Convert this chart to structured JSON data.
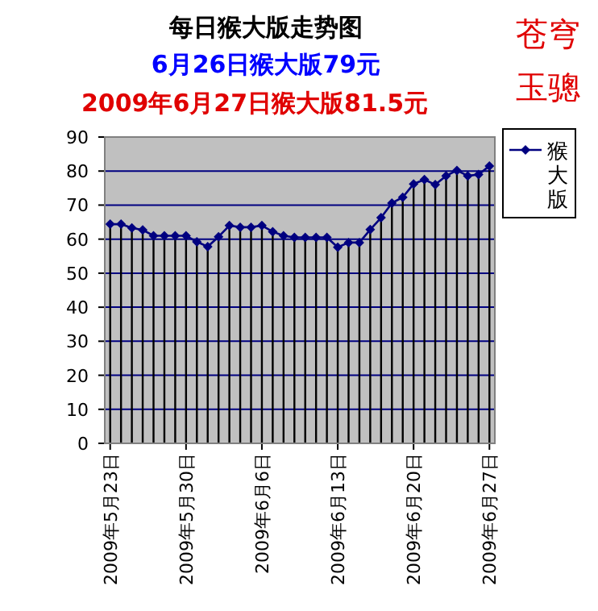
{
  "chart_data": {
    "type": "line",
    "title": "每日猴大版走势图",
    "subtitle": "6月26日猴大版79元",
    "annotations": [
      "2009年6月27日猴大版81.5元",
      "苍穹玉骢"
    ],
    "x": [
      "2009-05-23",
      "2009-05-24",
      "2009-05-25",
      "2009-05-26",
      "2009-05-27",
      "2009-05-28",
      "2009-05-29",
      "2009-05-30",
      "2009-05-31",
      "2009-06-01",
      "2009-06-02",
      "2009-06-03",
      "2009-06-04",
      "2009-06-05",
      "2009-06-06",
      "2009-06-07",
      "2009-06-08",
      "2009-06-09",
      "2009-06-10",
      "2009-06-11",
      "2009-06-12",
      "2009-06-13",
      "2009-06-14",
      "2009-06-15",
      "2009-06-16",
      "2009-06-17",
      "2009-06-18",
      "2009-06-19",
      "2009-06-20",
      "2009-06-21",
      "2009-06-22",
      "2009-06-23",
      "2009-06-24",
      "2009-06-25",
      "2009-06-26",
      "2009-06-27"
    ],
    "series": [
      {
        "type": "bar",
        "color": "#000000",
        "values": [
          64.4,
          64.4,
          63.3,
          62.7,
          61,
          61,
          61,
          61,
          59.2,
          57.8,
          60.7,
          64,
          63.5,
          63.5,
          64,
          62.2,
          61,
          60.5,
          60.5,
          60.5,
          60.5,
          57.6,
          59,
          59,
          62.8,
          66.3,
          70.6,
          72.3,
          76.2,
          77.5,
          76,
          78.6,
          80.2,
          78.6,
          79,
          81.5
        ]
      },
      {
        "name": "猴大版",
        "color": "#000080",
        "values": [
          64.4,
          64.4,
          63.3,
          62.7,
          61,
          61,
          61,
          61,
          59.2,
          57.8,
          60.7,
          64,
          63.5,
          63.5,
          64,
          62.2,
          61,
          60.5,
          60.5,
          60.5,
          60.5,
          57.6,
          59,
          59,
          62.8,
          66.3,
          70.6,
          72.3,
          76.2,
          77.5,
          76,
          78.6,
          80.2,
          78.6,
          79,
          81.5
        ]
      }
    ],
    "xlim": [
      "2009-05-22T12:00",
      "2009-06-27T12:00"
    ],
    "xticks": [
      {
        "value": "2009-05-23",
        "label": "2009年5月23日"
      },
      {
        "value": "2009-05-30",
        "label": "2009年5月30日"
      },
      {
        "value": "2009-06-06",
        "label": "2009年6月6日"
      },
      {
        "value": "2009-06-13",
        "label": "2009年6月13日"
      },
      {
        "value": "2009-06-20",
        "label": "2009年6月20日"
      },
      {
        "value": "2009-06-27",
        "label": "2009年6月27日"
      }
    ],
    "ylim": [
      0,
      90
    ],
    "yticks": [
      0,
      10,
      20,
      30,
      40,
      50,
      60,
      70,
      80,
      90
    ],
    "grid": "y",
    "legend": "right",
    "marker": "diamond",
    "line_style": "solid"
  }
}
